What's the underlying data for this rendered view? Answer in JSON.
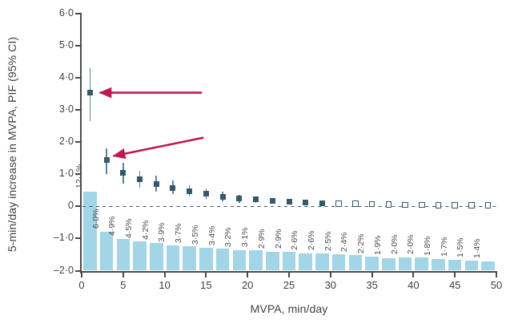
{
  "figure": {
    "kind": "scientific-chart-figure",
    "background": "#ffffff"
  },
  "style": {
    "bar_color": "#a2d5e5",
    "marker_color": "#35586c",
    "whisker_color": "#5f8494",
    "dash_color": "#2e5a70",
    "axis_color": "#4a4a4a",
    "text_color": "#404040",
    "arrow_color": "#c01a4d"
  },
  "chart_data": {
    "type": "combo-bar-scatter",
    "title": "",
    "xlabel": "MVPA, min/day",
    "ylabel": "5-min/day increase in MVPA, PIF (95% CI)",
    "xlim": [
      0,
      50
    ],
    "ylim": [
      -2.0,
      6.0
    ],
    "grid": false,
    "legend": "none",
    "x_ticks": [
      0,
      5,
      10,
      15,
      20,
      25,
      30,
      35,
      40,
      45,
      50
    ],
    "y_ticks": [
      {
        "value": 6,
        "label": "6·0"
      },
      {
        "value": 5,
        "label": "5·0"
      },
      {
        "value": 4,
        "label": "4·0"
      },
      {
        "value": 3,
        "label": "3·0"
      },
      {
        "value": 2,
        "label": "2·0"
      },
      {
        "value": 1,
        "label": "1·0"
      },
      {
        "value": 0,
        "label": "0"
      },
      {
        "value": -1,
        "label": "–1·0"
      },
      {
        "value": -2,
        "label": "–2·0"
      }
    ],
    "zero_line": {
      "y": 0,
      "style": "dashed"
    },
    "x": [
      1,
      3,
      5,
      7,
      9,
      11,
      13,
      15,
      17,
      19,
      21,
      23,
      25,
      27,
      29,
      31,
      33,
      35,
      37,
      39,
      41,
      43,
      45,
      47,
      49
    ],
    "bars": {
      "name": "population-impact-fraction-percent",
      "labels": [
        "12·1%",
        "6·0%",
        "4·9%",
        "4·5%",
        "4·2%",
        "3·9%",
        "3·7%",
        "3·5%",
        "3·4%",
        "3·2%",
        "3·1%",
        "2·9%",
        "2·9%",
        "2·6%",
        "2·6%",
        "2·5%",
        "2·4%",
        "2·2%",
        "1·9%",
        "2·0%",
        "2·0%",
        "1·8%",
        "1·7%",
        "1·5%",
        "1·4%"
      ],
      "percent": [
        12.1,
        6.0,
        4.9,
        4.5,
        4.2,
        3.9,
        3.7,
        3.5,
        3.4,
        3.2,
        3.1,
        2.9,
        2.9,
        2.6,
        2.6,
        2.5,
        2.4,
        2.2,
        1.9,
        2.0,
        2.0,
        1.8,
        1.7,
        1.5,
        1.4
      ],
      "baseline": -2.0,
      "value_per_percent": 0.2025
    },
    "points": {
      "name": "pif-estimate-with-95ci",
      "y": [
        3.55,
        1.45,
        1.05,
        0.85,
        0.7,
        0.58,
        0.48,
        0.39,
        0.3,
        0.24,
        0.21,
        0.17,
        0.15,
        0.12,
        0.1,
        0.09,
        0.08,
        0.07,
        0.06,
        0.05,
        0.05,
        0.04,
        0.04,
        0.03,
        0.03
      ],
      "ci_low": [
        2.65,
        1.0,
        0.72,
        0.58,
        0.47,
        0.38,
        0.3,
        0.24,
        0.17,
        0.12,
        0.1,
        0.08,
        0.06,
        0.05,
        0.04,
        0.03,
        0.02,
        0.02,
        0.01,
        0.01,
        0.01,
        0.0,
        0.0,
        0.0,
        0.0
      ],
      "ci_high": [
        4.3,
        1.8,
        1.35,
        1.12,
        0.95,
        0.8,
        0.67,
        0.56,
        0.45,
        0.37,
        0.32,
        0.27,
        0.24,
        0.2,
        0.17,
        0.15,
        0.13,
        0.12,
        0.1,
        0.09,
        0.08,
        0.08,
        0.07,
        0.06,
        0.06
      ],
      "open_marker_from_x": 31
    },
    "annotations": {
      "arrows": [
        {
          "name": "arrow-to-first-point",
          "from_x": 14.5,
          "from_y": 3.54,
          "to_x": 2.2,
          "to_y": 3.54
        },
        {
          "name": "arrow-to-second-point",
          "from_x": 14.7,
          "from_y": 2.14,
          "to_x": 3.85,
          "to_y": 1.57
        }
      ]
    }
  }
}
